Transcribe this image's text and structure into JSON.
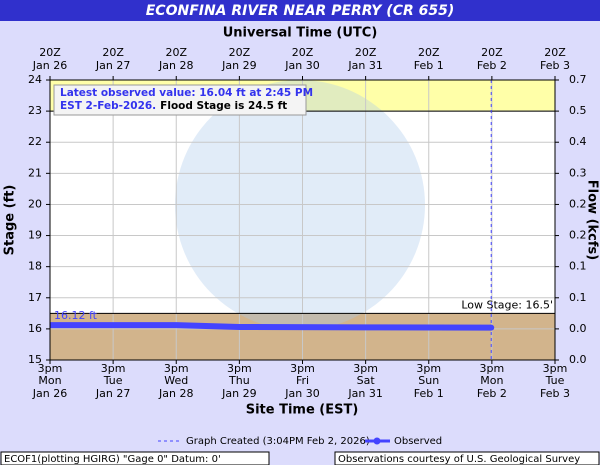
{
  "chart_data": {
    "type": "line",
    "title": "ECONFINA RIVER NEAR PERRY (CR 655)",
    "top_axis_label": "Universal Time (UTC)",
    "xlabel": "Site Time (EST)",
    "ylabel": "Stage (ft)",
    "y2label": "Flow (kcfs)",
    "xlim": [
      "Jan 26 3pm",
      "Feb 3 3pm"
    ],
    "xticks": [
      {
        "utc": "20Z",
        "time": "3pm",
        "weekday": "Mon",
        "date": "Jan 26"
      },
      {
        "utc": "20Z",
        "time": "3pm",
        "weekday": "Tue",
        "date": "Jan 27"
      },
      {
        "utc": "20Z",
        "time": "3pm",
        "weekday": "Wed",
        "date": "Jan 28"
      },
      {
        "utc": "20Z",
        "time": "3pm",
        "weekday": "Thu",
        "date": "Jan 29"
      },
      {
        "utc": "20Z",
        "time": "3pm",
        "weekday": "Fri",
        "date": "Jan 30"
      },
      {
        "utc": "20Z",
        "time": "3pm",
        "weekday": "Sat",
        "date": "Jan 31"
      },
      {
        "utc": "20Z",
        "time": "3pm",
        "weekday": "Sun",
        "date": "Feb 1"
      },
      {
        "utc": "20Z",
        "time": "3pm",
        "weekday": "Mon",
        "date": "Feb 2"
      },
      {
        "utc": "20Z",
        "time": "3pm",
        "weekday": "Tue",
        "date": "Feb 3"
      }
    ],
    "ylim": [
      15,
      24
    ],
    "yticks": [
      15,
      16,
      17,
      18,
      19,
      20,
      21,
      22,
      23,
      24
    ],
    "y2ticks": [
      {
        "value": 0,
        "label": "0.0"
      },
      {
        "value": 0,
        "label": "0.0"
      },
      0.1,
      0.1,
      0.2,
      0.2,
      0.3,
      0.4,
      0.5,
      0.7
    ],
    "grid": true,
    "action_stage": 23,
    "low_stage": 16.5,
    "low_stage_label": "Low Stage: 16.5'",
    "series": [
      {
        "name": "Observed",
        "color": "#4444ff",
        "x": [
          "Jan 26 3pm",
          "Jan 28 3pm",
          "Jan 29 3pm",
          "Jan 31 3pm",
          "Feb 2 2:45pm"
        ],
        "values": [
          16.12,
          16.12,
          16.06,
          16.05,
          16.04
        ],
        "first_label": "16.12 ft"
      }
    ],
    "annotation": [
      "Latest observed value: 16.04 ft at 2:45 PM",
      "EST 2-Feb-2026.",
      "Flood Stage is 24.5 ft"
    ],
    "legend_created": "Graph Created (3:04PM Feb 2, 2026)",
    "footer_left": "ECOF1(plotting HGIRG) \"Gage 0\" Datum: 0'",
    "footer_right": "Observations courtesy of U.S. Geological Survey"
  }
}
